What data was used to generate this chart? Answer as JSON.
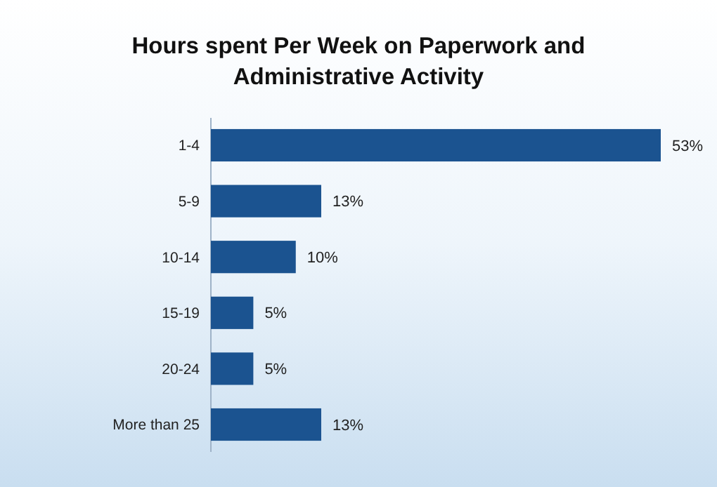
{
  "chart_data": {
    "type": "bar",
    "orientation": "horizontal",
    "title": "Hours spent Per Week on Paperwork and Administrative Activity",
    "categories": [
      "1-4",
      "5-9",
      "10-14",
      "15-19",
      "20-24",
      "More than 25"
    ],
    "values": [
      53,
      13,
      10,
      5,
      5,
      13
    ],
    "color": "#1b5390",
    "data_labels": true,
    "value_labels": [
      "53%",
      "13%",
      "10%",
      "5%",
      "5%",
      "13%"
    ]
  }
}
